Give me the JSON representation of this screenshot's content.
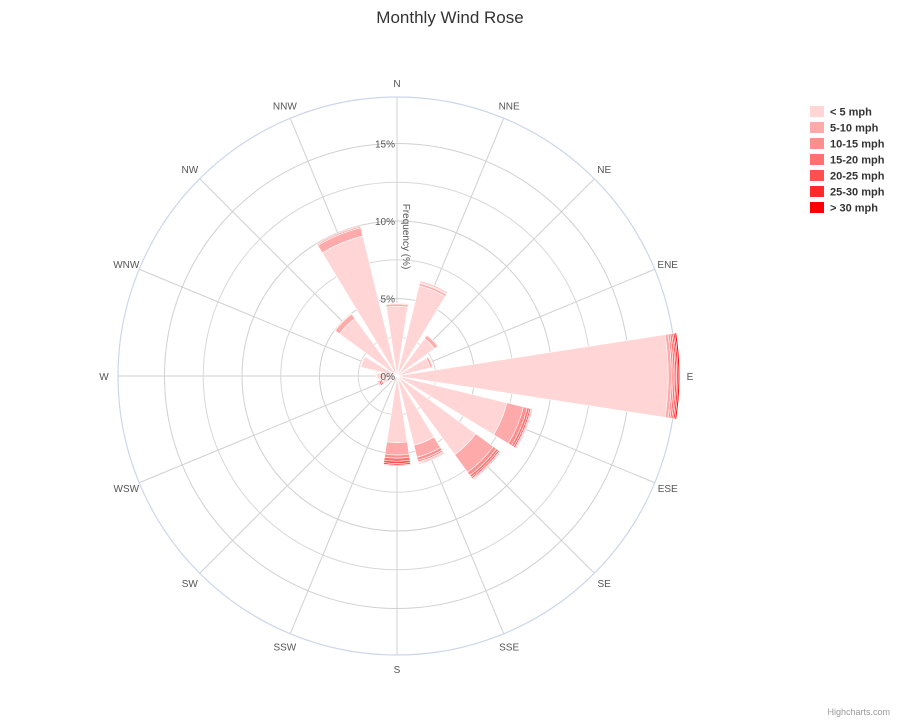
{
  "chart_data": {
    "type": "polar-stacked-column",
    "title": "Monthly Wind Rose",
    "radial_axis_title": "Frequency (%)",
    "radial_ticks": [
      "0%",
      "5%",
      "10%",
      "15%"
    ],
    "radial_tick_values": [
      0,
      5,
      10,
      15
    ],
    "rmax": 18,
    "directions": [
      "N",
      "NNE",
      "NE",
      "ENE",
      "E",
      "ESE",
      "SE",
      "SSE",
      "S",
      "SSW",
      "SW",
      "WSW",
      "W",
      "WNW",
      "NW",
      "NNW"
    ],
    "series": [
      {
        "name": "< 5 mph",
        "color": "#ffd5d5",
        "values": [
          4.5,
          6.0,
          3.0,
          2.2,
          17.5,
          7.3,
          6.3,
          4.6,
          4.3,
          0.0,
          0.4,
          0.9,
          1.3,
          2.4,
          4.6,
          9.3
        ]
      },
      {
        "name": "5-10 mph",
        "color": "#ffaaaa",
        "values": [
          0.15,
          0.15,
          0.25,
          0.15,
          0.2,
          1.1,
          1.4,
          0.8,
          0.8,
          0.0,
          0.05,
          0.05,
          0.05,
          0.05,
          0.35,
          0.55
        ]
      },
      {
        "name": "10-15 mph",
        "color": "#ff8f8f",
        "values": [
          0.05,
          0.05,
          0.05,
          0.05,
          0.12,
          0.25,
          0.25,
          0.2,
          0.2,
          0.0,
          0.0,
          0.05,
          0.0,
          0.0,
          0.05,
          0.08
        ]
      },
      {
        "name": "15-20 mph",
        "color": "#ff7070",
        "values": [
          0.0,
          0.05,
          0.0,
          0.0,
          0.12,
          0.15,
          0.15,
          0.1,
          0.2,
          0.0,
          0.0,
          0.1,
          0.0,
          0.0,
          0.0,
          0.05
        ]
      },
      {
        "name": "20-25 mph",
        "color": "#ff5050",
        "values": [
          0.0,
          0.05,
          0.0,
          0.0,
          0.1,
          0.1,
          0.1,
          0.05,
          0.15,
          0.0,
          0.0,
          0.1,
          0.0,
          0.0,
          0.0,
          0.0
        ]
      },
      {
        "name": "25-30 mph",
        "color": "#ff2b2b",
        "values": [
          0.0,
          0.0,
          0.0,
          0.0,
          0.1,
          0.05,
          0.05,
          0.05,
          0.1,
          0.0,
          0.0,
          0.05,
          0.0,
          0.0,
          0.0,
          0.0
        ]
      },
      {
        "name": "> 30 mph",
        "color": "#ff0000",
        "values": [
          0.0,
          0.0,
          0.0,
          0.0,
          0.1,
          0.05,
          0.05,
          0.05,
          0.05,
          0.0,
          0.0,
          0.05,
          0.0,
          0.0,
          0.0,
          0.0
        ]
      }
    ],
    "legend_position": "top-right",
    "grid": true
  },
  "credits": "Highcharts.com"
}
